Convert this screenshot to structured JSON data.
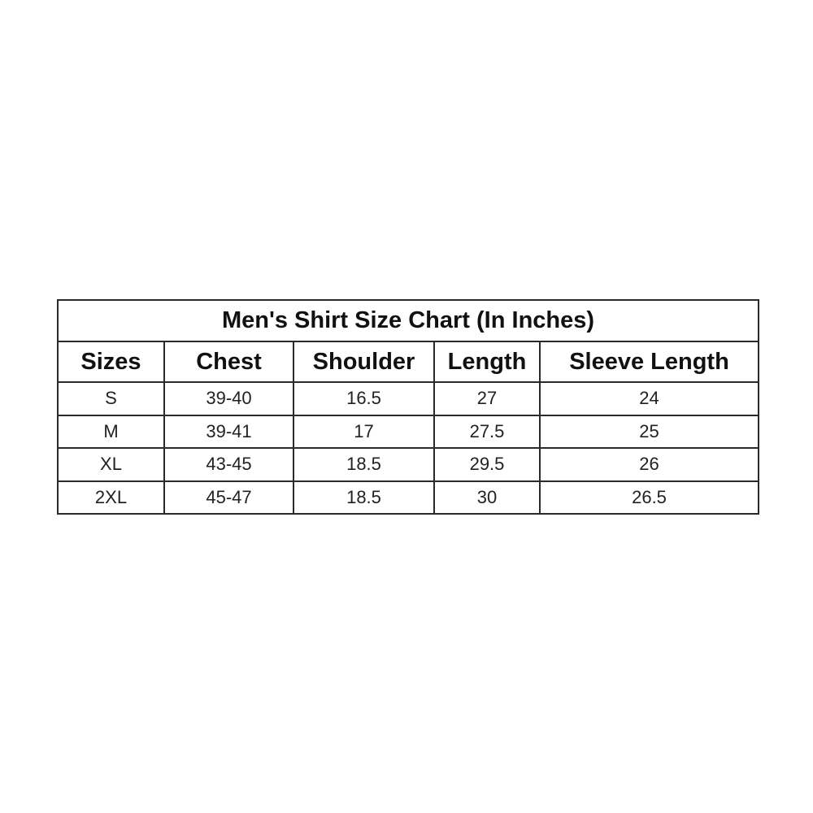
{
  "title": "Men's Shirt Size Chart (In Inches)",
  "columns": [
    "Sizes",
    "Chest",
    "Shoulder",
    "Length",
    "Sleeve Length"
  ],
  "rows": [
    [
      "S",
      "39-40",
      "16.5",
      "27",
      "24"
    ],
    [
      "M",
      "39-41",
      "17",
      "27.5",
      "25"
    ],
    [
      "XL",
      "43-45",
      "18.5",
      "29.5",
      "26"
    ],
    [
      "2XL",
      "45-47",
      "18.5",
      "30",
      "26.5"
    ]
  ]
}
